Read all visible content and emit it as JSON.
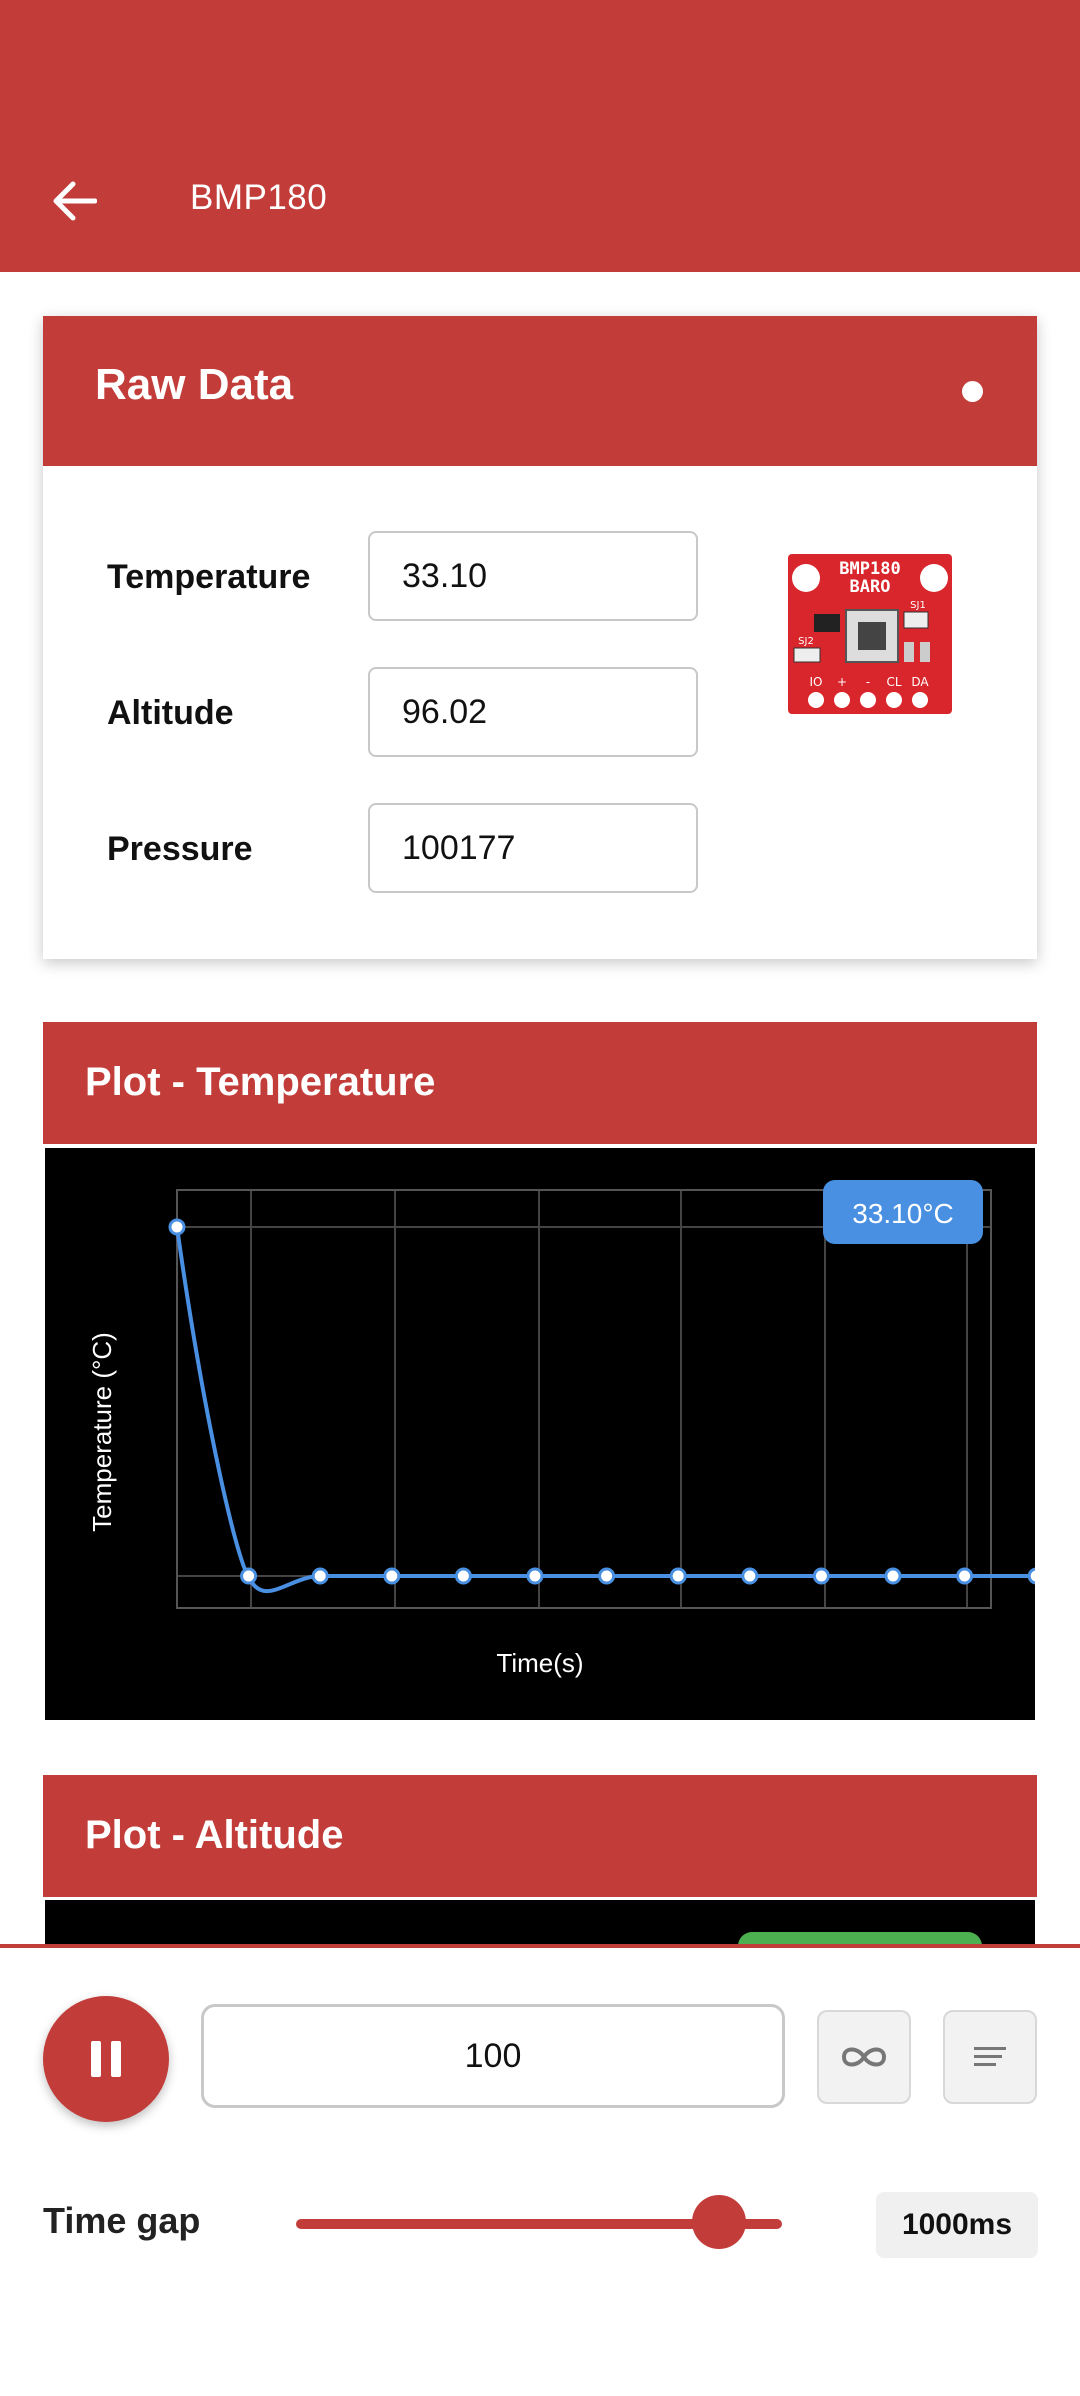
{
  "app_bar": {
    "title": "BMP180",
    "back_icon": "arrow-left-icon"
  },
  "raw_data": {
    "title": "Raw Data",
    "fields": [
      {
        "label": "Temperature",
        "value": "33.10"
      },
      {
        "label": "Altitude",
        "value": "96.02"
      },
      {
        "label": "Pressure",
        "value": "100177"
      }
    ],
    "sensor_image": {
      "board_text_1": "BMP180",
      "board_text_2": "BARO",
      "pads": [
        "IO",
        "+",
        "-",
        "CL",
        "DA"
      ],
      "jumpers": [
        "SJ1",
        "SJ2"
      ]
    }
  },
  "plot_temperature": {
    "title": "Plot - Temperature",
    "badge": "33.10°C"
  },
  "plot_altitude": {
    "title": "Plot - Altitude"
  },
  "chart_data": {
    "type": "line",
    "xlabel": "Time(s)",
    "ylabel": "Temperature (°C)",
    "x": [
      0,
      1,
      2,
      3,
      4,
      5,
      6,
      7,
      8,
      9,
      10,
      11,
      12
    ],
    "series": [
      {
        "values": [
          33.9,
          33.1,
          33.1,
          33.1,
          33.1,
          33.1,
          33.1,
          33.1,
          33.1,
          33.1,
          33.1,
          33.1,
          33.1
        ]
      }
    ],
    "ylim": [
      33.0,
      34.0
    ],
    "grid": true,
    "line_color": "#4a90e2"
  },
  "controls": {
    "play_pause_icon": "pause-icon",
    "count_value": "100",
    "loop_icon": "infinity-icon",
    "menu_icon": "lines-icon",
    "time_gap_label": "Time gap",
    "time_gap_value": "1000ms",
    "slider_level": 0.87
  },
  "colors": {
    "primary": "#c23d3a",
    "accent": "#4a90e2",
    "success": "#4caf50"
  }
}
